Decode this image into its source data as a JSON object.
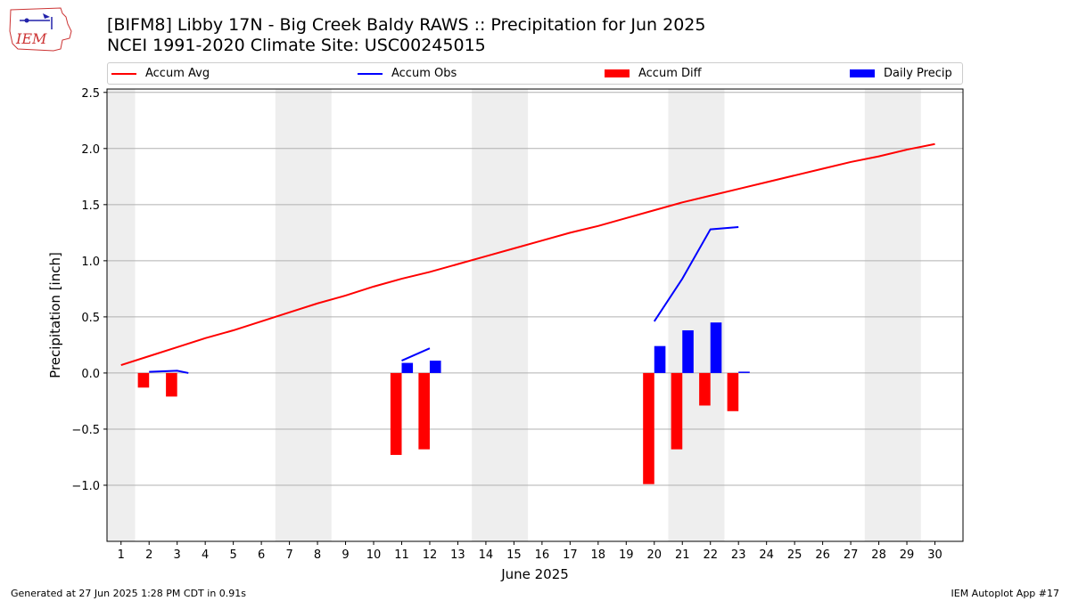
{
  "header": {
    "title_line1": "[BIFM8] Libby 17N - Big Creek Baldy RAWS :: Precipitation for Jun 2025",
    "title_line2": "NCEI 1991-2020 Climate Site: USC00245015",
    "logo_text": "IEM"
  },
  "legend": {
    "items": [
      {
        "label": "Accum Avg",
        "kind": "line",
        "color": "#ff0000"
      },
      {
        "label": "Accum Obs",
        "kind": "line",
        "color": "#0000ff"
      },
      {
        "label": "Accum Diff",
        "kind": "bar",
        "color": "#ff0000"
      },
      {
        "label": "Daily Precip",
        "kind": "bar",
        "color": "#0000ff"
      }
    ]
  },
  "footer": {
    "generated": "Generated at 27 Jun 2025 1:28 PM CDT in 0.91s",
    "app": "IEM Autoplot App #17"
  },
  "chart_data": {
    "type": "bar",
    "xlabel": "June 2025",
    "ylabel": "Precipitation [inch]",
    "xlim": [
      0.5,
      31
    ],
    "ylim": [
      -1.5,
      2.53
    ],
    "x_ticks": [
      1,
      2,
      3,
      4,
      5,
      6,
      7,
      8,
      9,
      10,
      11,
      12,
      13,
      14,
      15,
      16,
      17,
      18,
      19,
      20,
      21,
      22,
      23,
      24,
      25,
      26,
      27,
      28,
      29,
      30
    ],
    "y_ticks": [
      -1.0,
      -0.5,
      0.0,
      0.5,
      1.0,
      1.5,
      2.0,
      2.5
    ],
    "y_tick_labels": [
      "−1.0",
      "−0.5",
      "0.0",
      "0.5",
      "1.0",
      "1.5",
      "2.0",
      "2.5"
    ],
    "grid": "y",
    "legend_position": "top",
    "weekend_shading": [
      [
        0.5,
        1.5
      ],
      [
        6.5,
        8.5
      ],
      [
        13.5,
        15.5
      ],
      [
        20.5,
        22.5
      ],
      [
        27.5,
        29.5
      ]
    ],
    "colors": {
      "avg": "#ff0000",
      "obs": "#0000ff",
      "diff": "#ff0000",
      "daily": "#0000ff",
      "shade": "#eeeeee",
      "grid": "#b0b0b0"
    },
    "series": [
      {
        "name": "Accum Avg",
        "kind": "line",
        "x": [
          1,
          2,
          3,
          4,
          5,
          6,
          7,
          8,
          9,
          10,
          11,
          12,
          13,
          14,
          15,
          16,
          17,
          18,
          19,
          20,
          21,
          22,
          23,
          24,
          25,
          26,
          27,
          28,
          29,
          30
        ],
        "values": [
          0.07,
          0.15,
          0.23,
          0.31,
          0.38,
          0.46,
          0.54,
          0.62,
          0.69,
          0.77,
          0.84,
          0.9,
          0.97,
          1.04,
          1.11,
          1.18,
          1.25,
          1.31,
          1.38,
          1.45,
          1.52,
          1.58,
          1.64,
          1.7,
          1.76,
          1.82,
          1.88,
          1.93,
          1.99,
          2.04
        ]
      },
      {
        "name": "Accum Obs",
        "kind": "line",
        "segments": [
          {
            "x": [
              2,
              3,
              3.4
            ],
            "values": [
              0.01,
              0.02,
              0.0
            ]
          },
          {
            "x": [
              11,
              12
            ],
            "values": [
              0.11,
              0.22
            ]
          },
          {
            "x": [
              20,
              21,
              22,
              23
            ],
            "values": [
              0.46,
              0.84,
              1.28,
              1.3
            ]
          }
        ]
      },
      {
        "name": "Accum Diff",
        "kind": "bar",
        "x": [
          2,
          3,
          11,
          12,
          20,
          21,
          22,
          23
        ],
        "values": [
          -0.13,
          -0.21,
          -0.73,
          -0.68,
          -0.99,
          -0.68,
          -0.29,
          -0.34
        ]
      },
      {
        "name": "Daily Precip",
        "kind": "bar",
        "x": [
          11,
          12,
          20,
          21,
          22,
          23
        ],
        "values": [
          0.09,
          0.11,
          0.24,
          0.38,
          0.45,
          0.01
        ]
      }
    ]
  }
}
